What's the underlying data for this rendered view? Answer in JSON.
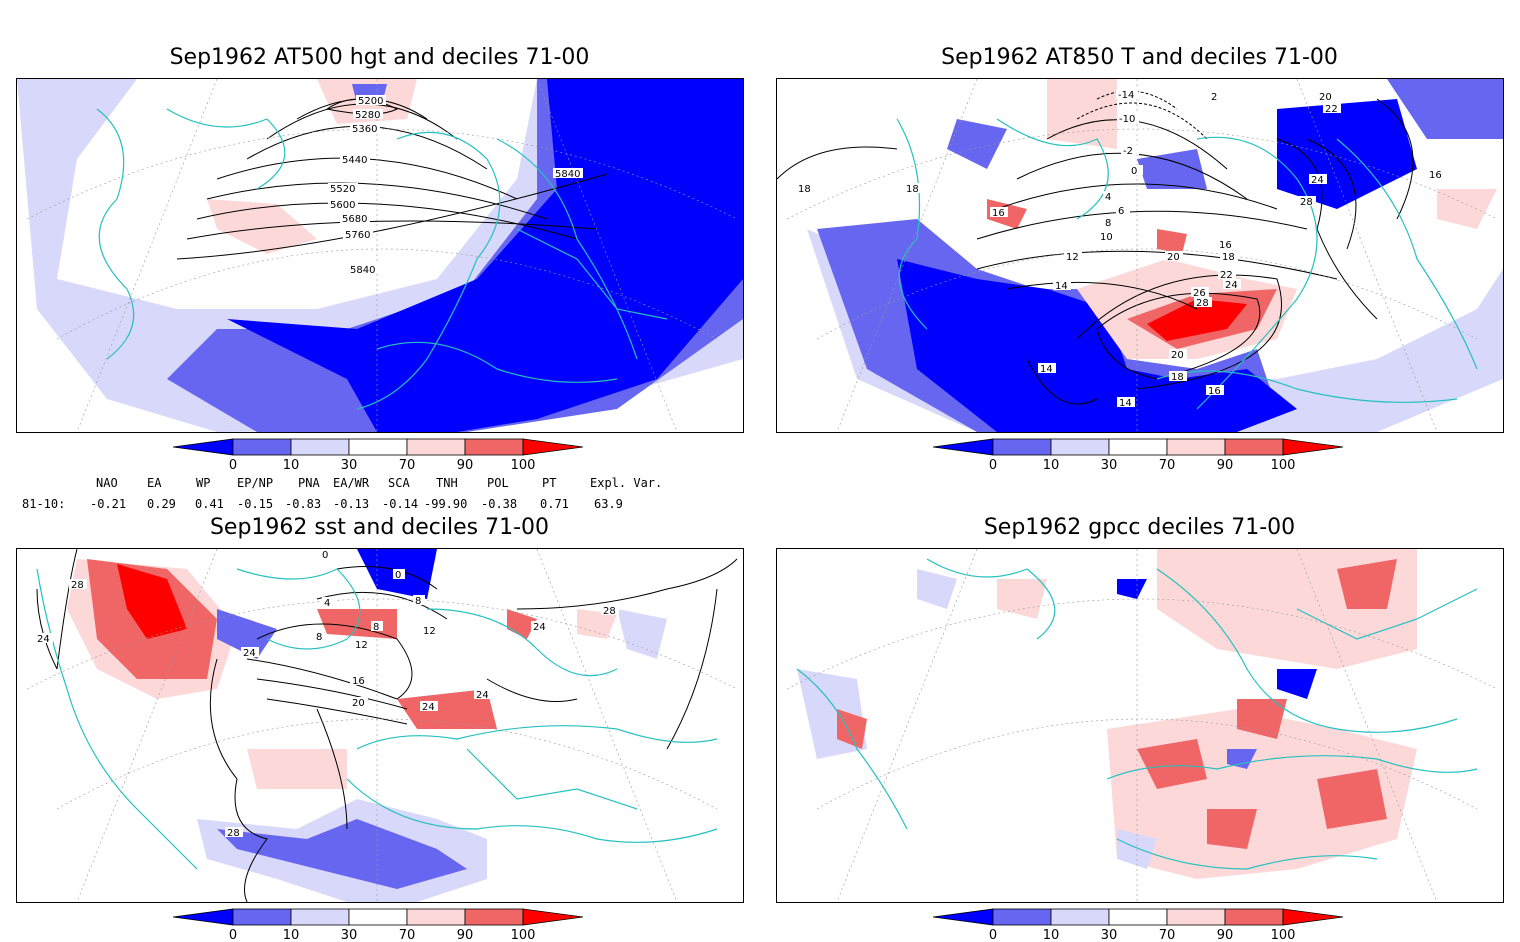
{
  "panels": [
    {
      "title": "Sep1962 AT500 hgt and deciles 71-00",
      "contour_labels": [
        "5200",
        "5280",
        "5360",
        "5440",
        "5520",
        "5600",
        "5680",
        "5760",
        "5840",
        "5840"
      ]
    },
    {
      "title": "Sep1962 AT850 T and deciles 71-00",
      "contour_labels": [
        "-14",
        "-10",
        "-2",
        "0",
        "2",
        "4",
        "6",
        "8",
        "10",
        "12",
        "14",
        "14",
        "14",
        "16",
        "16",
        "16",
        "16",
        "18",
        "18",
        "18",
        "20",
        "22",
        "24",
        "26",
        "28",
        "28",
        "20",
        "22",
        "24",
        "20",
        "18"
      ]
    },
    {
      "title": "Sep1962 sst and deciles 71-00",
      "contour_labels": [
        "0",
        "0",
        "4",
        "8",
        "8",
        "8",
        "12",
        "12",
        "16",
        "20",
        "24",
        "24",
        "24",
        "24",
        "28",
        "28",
        "28",
        "24"
      ]
    },
    {
      "title": "Sep1962 gpcc deciles 71-00",
      "contour_labels": []
    }
  ],
  "colorbar": {
    "ticks": [
      "0",
      "10",
      "30",
      "70",
      "90",
      "100"
    ],
    "colors": [
      "#0000ff",
      "#6666f0",
      "#d8d8fa",
      "#ffffff",
      "#fcd8d8",
      "#f06666",
      "#ff0000"
    ]
  },
  "indices": {
    "headers": [
      "NAO",
      "EA",
      "WP",
      "EP/NP",
      "PNA",
      "EA/WR",
      "SCA",
      "TNH",
      "POL",
      "PT",
      "Expl. Var."
    ],
    "row_label": "81-10:",
    "values": [
      "-0.21",
      "0.29",
      "0.41",
      "-0.15",
      "-0.83",
      "-0.13",
      "-0.14",
      "-99.90",
      "-0.38",
      "0.71",
      "63.9"
    ]
  },
  "colors": {
    "coast": "#26c0c0",
    "blue_strong": "#0000ff",
    "blue_mid": "#6666f0",
    "blue_light": "#d8d8fa",
    "red_light": "#fcd8d8",
    "red_mid": "#f06666",
    "red_strong": "#ff0000"
  }
}
